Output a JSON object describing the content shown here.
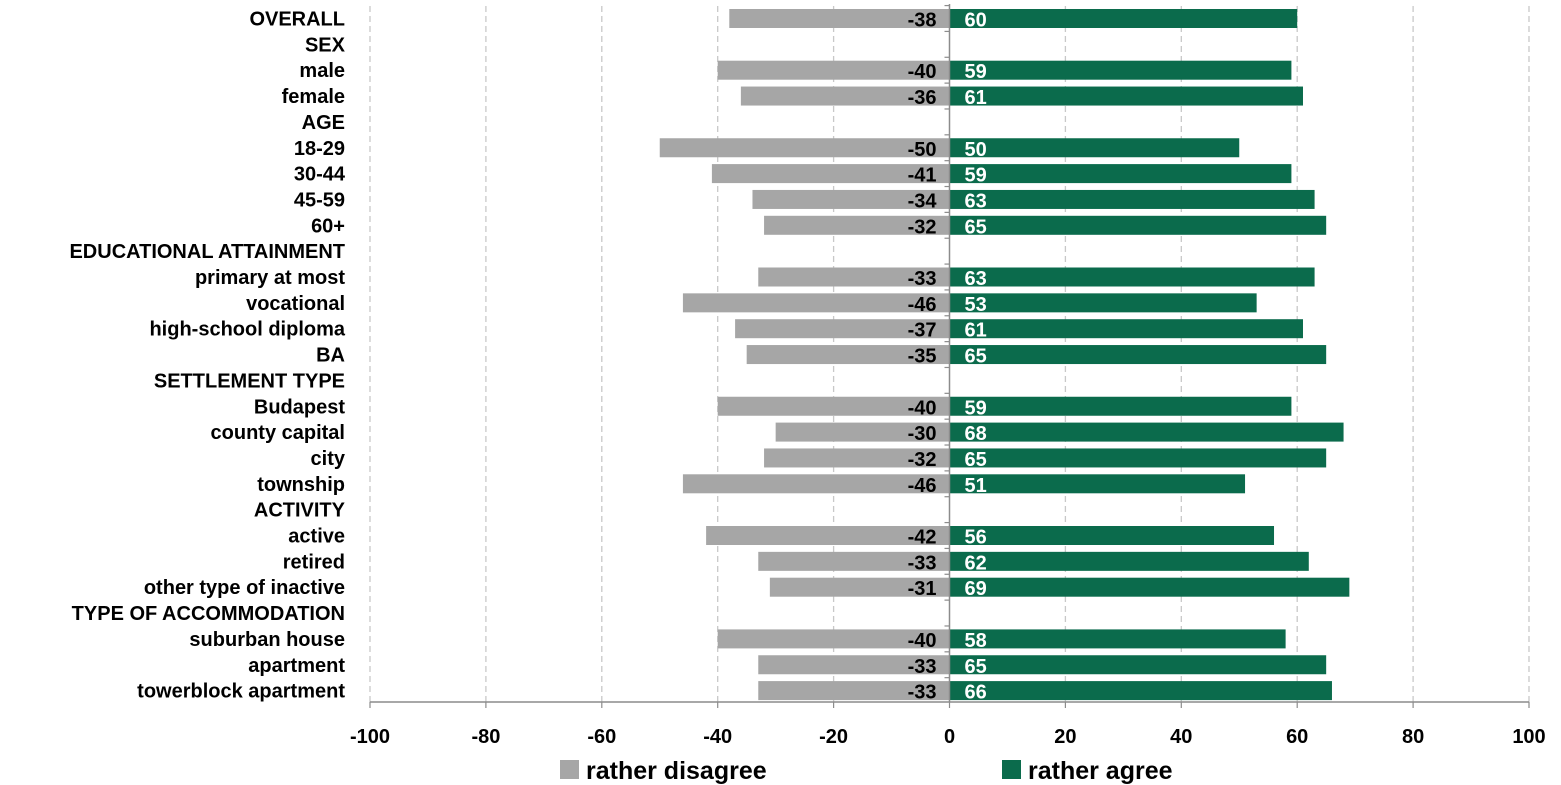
{
  "chart_data": {
    "type": "bar",
    "orientation": "horizontal",
    "stacked": "diverging",
    "title": "",
    "xlabel": "",
    "ylabel": "",
    "xlim": [
      -100,
      100
    ],
    "ticks": [
      "-100",
      "-80",
      "-60",
      "-40",
      "-20",
      "0",
      "20",
      "40",
      "60",
      "80",
      "100"
    ],
    "tick_values": [
      -100,
      -80,
      -60,
      -40,
      -20,
      0,
      20,
      40,
      60,
      80,
      100
    ],
    "grid": "vertical dashed",
    "legend_position": "bottom",
    "categories": [
      "OVERALL",
      "SEX",
      "male",
      "female",
      "AGE",
      "18-29",
      "30-44",
      "45-59",
      "60+",
      "EDUCATIONAL ATTAINMENT",
      "primary at most",
      "vocational",
      "high-school diploma",
      "BA",
      "SETTLEMENT TYPE",
      "Budapest",
      "county capital",
      "city",
      "township",
      "ACTIVITY",
      "active",
      "retired",
      "other type of inactive",
      "TYPE OF ACCOMMODATION",
      "suburban house",
      "apartment",
      "towerblock apartment"
    ],
    "series": [
      {
        "name": "rather disagree",
        "color": "#a6a6a6",
        "values": [
          -38,
          null,
          -40,
          -36,
          null,
          -50,
          -41,
          -34,
          -32,
          null,
          -33,
          -46,
          -37,
          -35,
          null,
          -40,
          -30,
          -32,
          -46,
          null,
          -42,
          -33,
          -31,
          null,
          -40,
          -33,
          -33
        ]
      },
      {
        "name": "rather agree",
        "color": "#0b6b4c",
        "values": [
          60,
          null,
          59,
          61,
          null,
          50,
          59,
          63,
          65,
          null,
          63,
          53,
          61,
          65,
          null,
          59,
          68,
          65,
          51,
          null,
          56,
          62,
          69,
          null,
          58,
          65,
          66
        ]
      }
    ]
  }
}
